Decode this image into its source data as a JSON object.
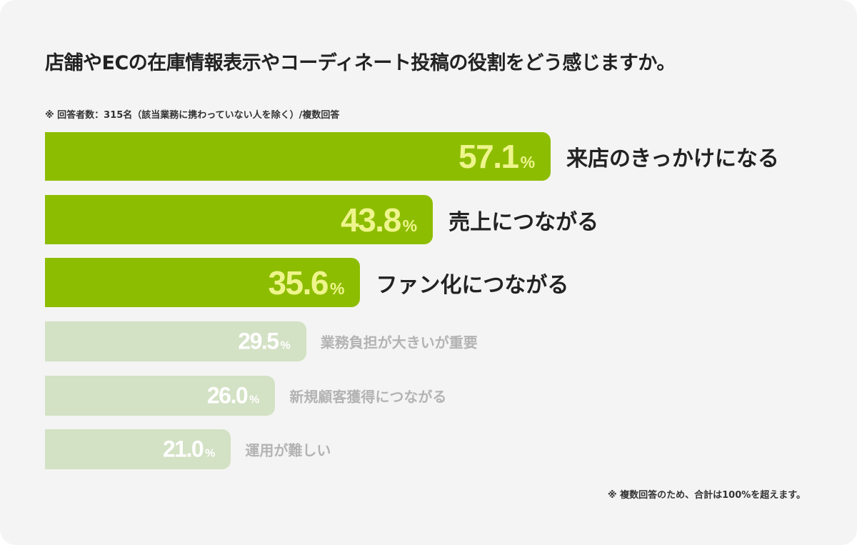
{
  "chart_data": {
    "type": "bar",
    "orientation": "horizontal",
    "title": "店舗やECの在庫情報表示やコーディネート投稿の役割をどう感じますか。",
    "note": "※ 回答者数：315名（該当業務に携わっていない人を除く）/複数回答",
    "footnote": "※ 複数回答のため、合計は100%を超えます。",
    "unit": "%",
    "categories": [
      "来店のきっかけになる",
      "売上につながる",
      "ファン化につながる",
      "業務負担が大きいが重要",
      "新規顧客獲得につながる",
      "運用が難しい"
    ],
    "values": [
      57.1,
      43.8,
      35.6,
      29.5,
      26.0,
      21.0
    ],
    "highlighted": [
      true,
      true,
      true,
      false,
      false,
      false
    ],
    "colors": {
      "highlight_bar": "#8dbd00",
      "highlight_value": "#eef58c",
      "highlight_label": "#222222",
      "muted_bar": "#d3e1c4",
      "muted_value": "#ffffff",
      "muted_label": "#b3b3b3"
    }
  }
}
